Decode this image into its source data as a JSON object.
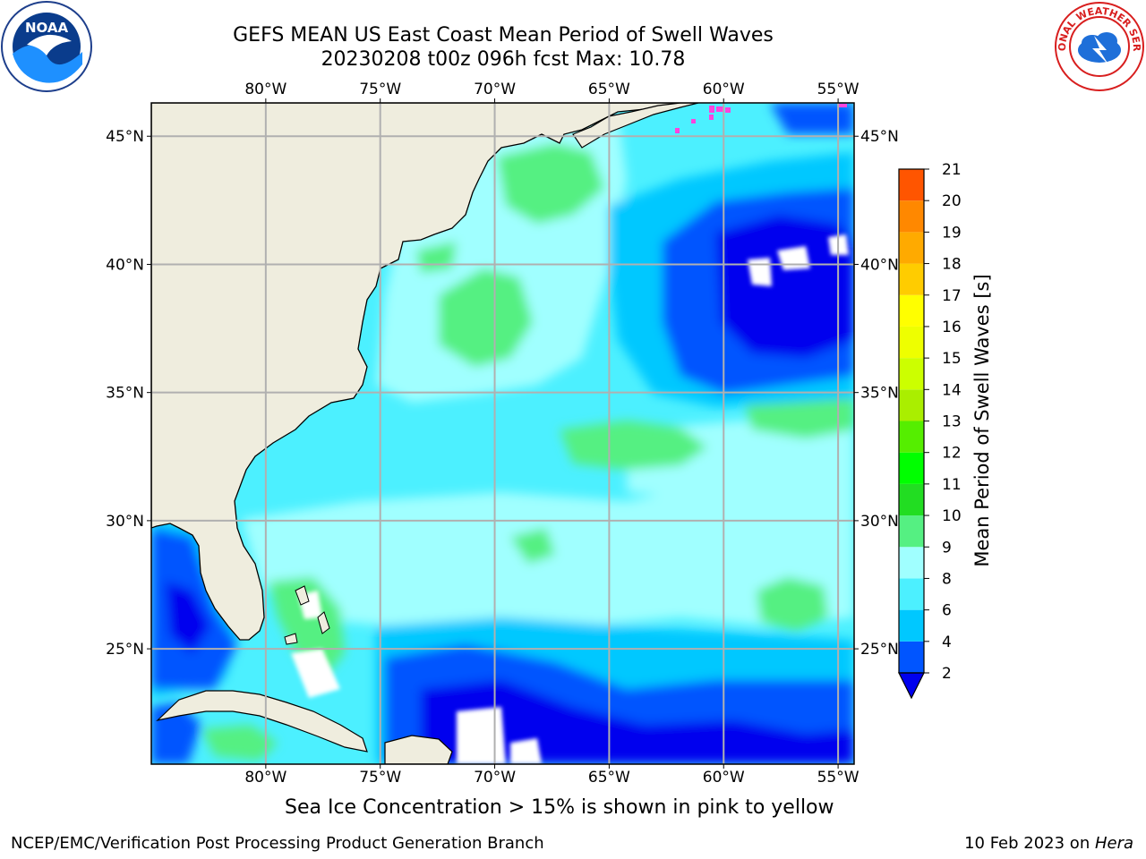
{
  "title_line1": "GEFS MEAN US East Coast Mean Period of Swell Waves",
  "title_line2": "20230208 t00z 096h fcst   Max: 10.78",
  "map": {
    "lon_labels": [
      "80°W",
      "75°W",
      "70°W",
      "65°W",
      "60°W",
      "55°W"
    ],
    "lat_labels": [
      "45°N",
      "40°N",
      "35°N",
      "30°N",
      "25°N"
    ],
    "lon_values": [
      -80,
      -75,
      -70,
      -65,
      -60,
      -55
    ],
    "lat_values": [
      45,
      40,
      35,
      30,
      25
    ],
    "extent": {
      "lon_min": -85,
      "lon_max": -54.3,
      "lat_min": 20.5,
      "lat_max": 46.3
    },
    "land_color": "#efedde",
    "grid_color": "#b0b0b0"
  },
  "colorbar": {
    "title": "Mean Period of Swell Waves [s]",
    "ticks": [
      "2",
      "4",
      "6",
      "8",
      "9",
      "10",
      "11",
      "12",
      "13",
      "14",
      "15",
      "16",
      "17",
      "18",
      "19",
      "20",
      "21"
    ],
    "colors": [
      "#0055ff",
      "#00c8ff",
      "#4cf0ff",
      "#a0ffff",
      "#55f082",
      "#22dd22",
      "#00ff00",
      "#55ee00",
      "#aaee00",
      "#ccff00",
      "#eeff00",
      "#ffff00",
      "#ffcc00",
      "#ffaa00",
      "#ff8800",
      "#ff5500",
      "#ff2200",
      "#ff0000"
    ],
    "under_color": "#0000ee"
  },
  "ice_note": "Sea Ice Concentration > 15% is shown in pink to yellow",
  "footer": {
    "left": "NCEP/EMC/Verification Post Processing Product Generation Branch",
    "date": "10 Feb 2023 on ",
    "host": "Hera"
  },
  "logos": {
    "noaa": "NOAA",
    "nws": "NATIONAL WEATHER SERVICE"
  }
}
